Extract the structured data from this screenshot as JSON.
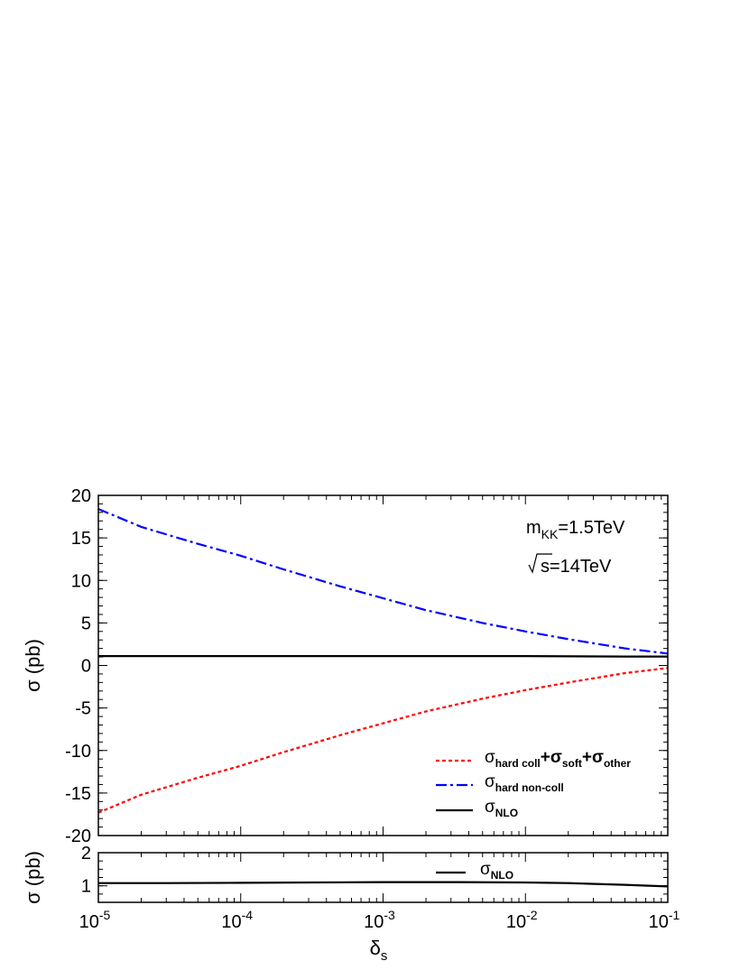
{
  "chart_data": [
    {
      "type": "line",
      "ylabel": "σ (pb)",
      "x_scale": "log",
      "xlim": [
        1e-05,
        0.1
      ],
      "ylim": [
        -20,
        20
      ],
      "yticks": [
        -20,
        -15,
        -10,
        -5,
        0,
        5,
        10,
        15,
        20
      ],
      "ytick_labels": [
        "-20",
        "-15",
        "-10",
        "-5",
        "0",
        "5",
        "10",
        "15",
        "20"
      ],
      "annotations": {
        "mass": {
          "base": "m",
          "sub": "KK",
          "rest": "=1.5TeV"
        },
        "energy": {
          "base": "s",
          "rest": "=14TeV"
        }
      },
      "series": [
        {
          "key": "soft",
          "legend": {
            "sigma": "σ",
            "p1_sub": "hard coll",
            "plus1": "+σ",
            "p2_sub": "soft",
            "plus2": "+σ",
            "p3_sub": "other"
          },
          "color": "#ff0000",
          "dash": "dotted",
          "x": [
            1e-05,
            2e-05,
            5e-05,
            0.0001,
            0.0002,
            0.0005,
            0.001,
            0.002,
            0.005,
            0.01,
            0.02,
            0.05,
            0.1
          ],
          "y": [
            -17.3,
            -15.2,
            -13.2,
            -11.8,
            -10.2,
            -8.2,
            -6.8,
            -5.4,
            -3.9,
            -2.9,
            -2.0,
            -0.9,
            -0.3
          ]
        },
        {
          "key": "hard",
          "legend": {
            "sigma": "σ",
            "p1_sub": "hard non-coll"
          },
          "color": "#0000ff",
          "dash": "dashdot",
          "x": [
            1e-05,
            2e-05,
            5e-05,
            0.0001,
            0.0002,
            0.0005,
            0.001,
            0.002,
            0.005,
            0.01,
            0.02,
            0.05,
            0.1
          ],
          "y": [
            18.4,
            16.3,
            14.3,
            12.9,
            11.3,
            9.3,
            7.9,
            6.5,
            5.0,
            4.0,
            3.1,
            2.0,
            1.4
          ]
        },
        {
          "key": "nlo",
          "legend": {
            "sigma": "σ",
            "p1_sub": "NLO"
          },
          "color": "#000000",
          "dash": "solid",
          "x": [
            1e-05,
            0.0001,
            0.001,
            0.01,
            0.05,
            0.1
          ],
          "y": [
            1.1,
            1.1,
            1.1,
            1.1,
            1.05,
            1.05
          ]
        }
      ]
    },
    {
      "type": "line",
      "xlabel": {
        "base": "δ",
        "sub": "s"
      },
      "ylabel": "σ (pb)",
      "x_scale": "log",
      "xlim": [
        1e-05,
        0.1
      ],
      "ylim": [
        0.5,
        2
      ],
      "yticks": [
        1,
        2
      ],
      "ytick_labels": [
        "1",
        "2"
      ],
      "xtick_labels": [
        {
          "base": "10",
          "exp": "-5"
        },
        {
          "base": "10",
          "exp": "-4"
        },
        {
          "base": "10",
          "exp": "-3"
        },
        {
          "base": "10",
          "exp": "-2"
        },
        {
          "base": "10",
          "exp": "-1"
        }
      ],
      "series": [
        {
          "key": "nlo",
          "legend": {
            "sigma": "σ",
            "p1_sub": "NLO"
          },
          "color": "#000000",
          "dash": "solid",
          "x": [
            1e-05,
            3e-05,
            0.0001,
            0.0003,
            0.001,
            0.003,
            0.01,
            0.02,
            0.05,
            0.1
          ],
          "y": [
            1.08,
            1.08,
            1.09,
            1.1,
            1.11,
            1.11,
            1.1,
            1.08,
            1.03,
            0.98
          ]
        }
      ]
    }
  ]
}
